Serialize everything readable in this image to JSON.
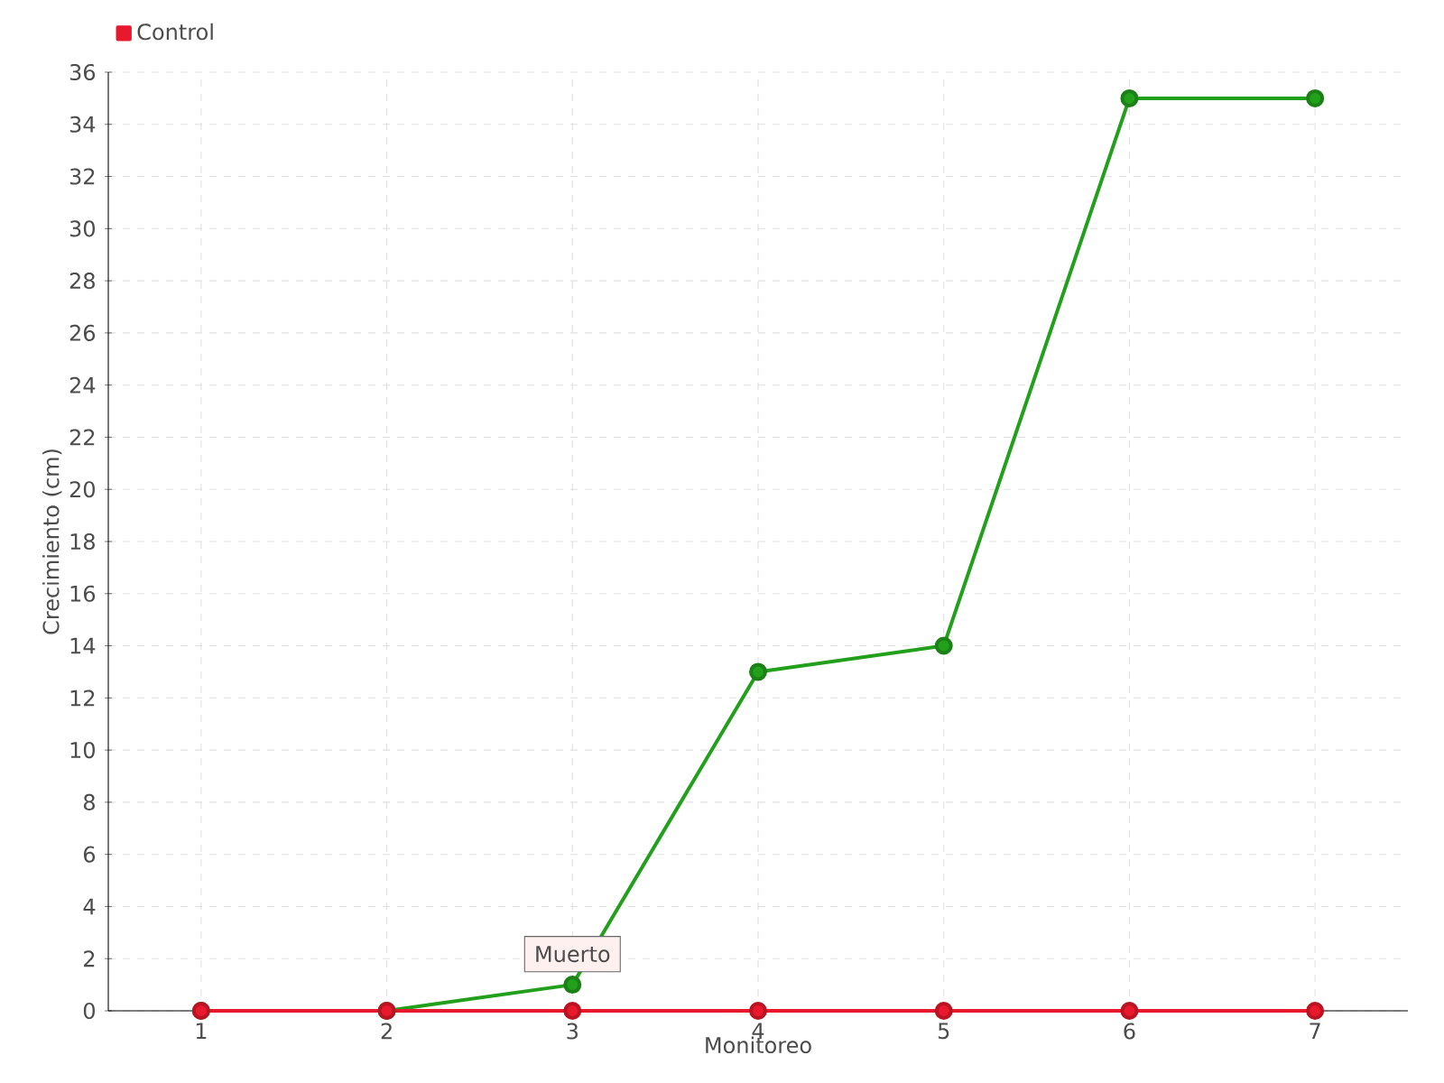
{
  "chart_data": {
    "type": "line",
    "xlabel": "Monitoreo",
    "ylabel": "Crecimiento (cm)",
    "categories": [
      "1",
      "2",
      "3",
      "4",
      "5",
      "6",
      "7"
    ],
    "series": [
      {
        "color": "#22a01c",
        "values": [
          0,
          0,
          1,
          13,
          14,
          35,
          35
        ]
      },
      {
        "name": "Control",
        "color": "#e8192c",
        "values": [
          0,
          0,
          0,
          0,
          0,
          0,
          0
        ]
      }
    ],
    "ylim": [
      0,
      36
    ],
    "yticks": [
      0,
      2,
      4,
      6,
      8,
      10,
      12,
      14,
      16,
      18,
      20,
      22,
      24,
      26,
      28,
      30,
      32,
      34,
      36
    ],
    "grid": true,
    "legend": "top left",
    "marker": "circle",
    "annotations": [
      {
        "text": "Muerto",
        "x": "3",
        "y": 0
      }
    ]
  }
}
